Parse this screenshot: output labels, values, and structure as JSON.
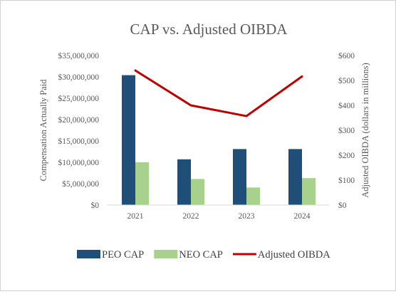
{
  "chart_data": {
    "type": "bar",
    "title": "CAP vs. Adjusted OIBDA",
    "categories": [
      "2021",
      "2022",
      "2023",
      "2024"
    ],
    "ylabel": "Compensation Actually Paid",
    "y2label": "Adjusted OIBDA (dollars in millions)",
    "ylim": [
      0,
      35000000
    ],
    "y2lim": [
      0,
      600
    ],
    "y_ticks": [
      "$0",
      "$5,000,000",
      "$10,000,000",
      "$15,000,000",
      "$20,000,000",
      "$25,000,000",
      "$30,000,000",
      "$35,000,000"
    ],
    "y2_ticks": [
      "$0",
      "$100",
      "$200",
      "$300",
      "$400",
      "$500",
      "$600"
    ],
    "grid": false,
    "legend_position": "bottom",
    "series": [
      {
        "name": "PEO CAP",
        "type": "bar",
        "axis": "left",
        "color": "#1f4e79",
        "values": [
          30400000,
          10700000,
          13100000,
          13100000
        ]
      },
      {
        "name": "NEO CAP",
        "type": "bar",
        "axis": "left",
        "color": "#a9d18e",
        "values": [
          10000000,
          6100000,
          4100000,
          6300000
        ]
      },
      {
        "name": "Adjusted OIBDA",
        "type": "line",
        "axis": "right",
        "color": "#c00000",
        "values": [
          540,
          400,
          357,
          516
        ]
      }
    ]
  }
}
